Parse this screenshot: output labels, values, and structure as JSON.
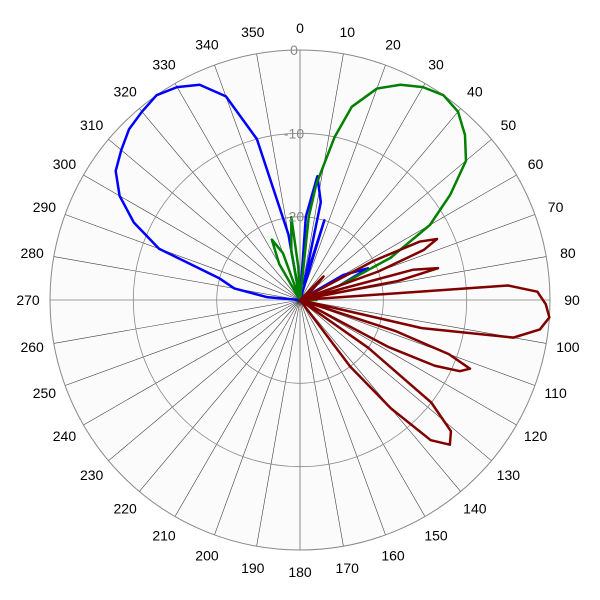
{
  "chart_data": {
    "type": "line",
    "subtype": "polar",
    "title": "",
    "angle_unit": "degrees",
    "angle_zero": "top",
    "angle_direction": "clockwise",
    "angle_ticks": [
      "0",
      "10",
      "20",
      "30",
      "40",
      "50",
      "60",
      "70",
      "80",
      "90",
      "100",
      "110",
      "120",
      "130",
      "140",
      "150",
      "160",
      "170",
      "180",
      "190",
      "200",
      "210",
      "220",
      "230",
      "240",
      "250",
      "260",
      "270",
      "280",
      "290",
      "300",
      "310",
      "320",
      "330",
      "340",
      "350"
    ],
    "radial_ticks": [
      "0",
      "-10",
      "-20"
    ],
    "rlim": [
      -30,
      0
    ],
    "grid": true,
    "legend": "none",
    "series": [
      {
        "color": "#0000ff",
        "points": [
          [
            0,
            -40
          ],
          [
            4,
            -20
          ],
          [
            8,
            -15
          ],
          [
            12,
            -18
          ],
          [
            14,
            -28
          ],
          [
            17,
            -20
          ],
          [
            20,
            -40
          ],
          [
            25,
            -40
          ],
          [
            45,
            -40
          ],
          [
            60,
            -24
          ],
          [
            65,
            -21
          ],
          [
            70,
            -25
          ],
          [
            80,
            -40
          ],
          [
            110,
            -40
          ],
          [
            220,
            -40
          ],
          [
            260,
            -40
          ],
          [
            265,
            -32
          ],
          [
            270,
            -30
          ],
          [
            275,
            -26
          ],
          [
            280,
            -22
          ],
          [
            285,
            -20
          ],
          [
            290,
            -12
          ],
          [
            295,
            -8
          ],
          [
            300,
            -5
          ],
          [
            305,
            -3
          ],
          [
            310,
            -2
          ],
          [
            315,
            -1
          ],
          [
            320,
            -0.5
          ],
          [
            325,
            0
          ],
          [
            330,
            -0.5
          ],
          [
            335,
            -1.5
          ],
          [
            340,
            -4
          ],
          [
            345,
            -10
          ],
          [
            350,
            -22
          ],
          [
            354,
            -30
          ],
          [
            358,
            -40
          ]
        ]
      },
      {
        "color": "#008000",
        "points": [
          [
            0,
            -40
          ],
          [
            3,
            -30
          ],
          [
            6,
            -20
          ],
          [
            8,
            -16
          ],
          [
            12,
            -10
          ],
          [
            15,
            -6
          ],
          [
            20,
            -3
          ],
          [
            25,
            -1.5
          ],
          [
            30,
            -0.5
          ],
          [
            35,
            0
          ],
          [
            40,
            -0.5
          ],
          [
            45,
            -2
          ],
          [
            50,
            -4
          ],
          [
            55,
            -8
          ],
          [
            60,
            -12
          ],
          [
            65,
            -18
          ],
          [
            70,
            -25
          ],
          [
            75,
            -40
          ],
          [
            85,
            -40
          ],
          [
            90,
            -28
          ],
          [
            95,
            -40
          ],
          [
            110,
            -40
          ],
          [
            250,
            -40
          ],
          [
            265,
            -32
          ],
          [
            270,
            -40
          ],
          [
            278,
            -30
          ],
          [
            285,
            -40
          ],
          [
            300,
            -40
          ],
          [
            330,
            -25
          ],
          [
            335,
            -22
          ],
          [
            340,
            -24
          ],
          [
            345,
            -30
          ],
          [
            350,
            -24
          ],
          [
            354,
            -20
          ],
          [
            357,
            -26
          ],
          [
            360,
            -40
          ]
        ]
      },
      {
        "color": "#800000",
        "points": [
          [
            0,
            -40
          ],
          [
            20,
            -40
          ],
          [
            40,
            -30
          ],
          [
            45,
            -26
          ],
          [
            50,
            -28
          ],
          [
            55,
            -35
          ],
          [
            60,
            -30
          ],
          [
            62,
            -20
          ],
          [
            64,
            -14
          ],
          [
            66,
            -12
          ],
          [
            68,
            -14
          ],
          [
            70,
            -20
          ],
          [
            72,
            -30
          ],
          [
            75,
            -16
          ],
          [
            77,
            -13
          ],
          [
            79,
            -18
          ],
          [
            82,
            -40
          ],
          [
            86,
            -5
          ],
          [
            88,
            -1.5
          ],
          [
            91,
            -0.5
          ],
          [
            94,
            0
          ],
          [
            97,
            -1
          ],
          [
            100,
            -4
          ],
          [
            103,
            -15
          ],
          [
            106,
            -40
          ],
          [
            108,
            -18
          ],
          [
            110,
            -11
          ],
          [
            112,
            -8
          ],
          [
            114,
            -9
          ],
          [
            116,
            -12
          ],
          [
            118,
            -18
          ],
          [
            121,
            -40
          ],
          [
            125,
            -20
          ],
          [
            128,
            -10
          ],
          [
            131,
            -6
          ],
          [
            134,
            -5
          ],
          [
            137,
            -7
          ],
          [
            140,
            -13
          ],
          [
            143,
            -20
          ],
          [
            147,
            -40
          ],
          [
            170,
            -40
          ],
          [
            200,
            -40
          ],
          [
            230,
            -40
          ],
          [
            260,
            -40
          ],
          [
            290,
            -40
          ],
          [
            320,
            -40
          ],
          [
            360,
            -40
          ]
        ]
      }
    ]
  }
}
